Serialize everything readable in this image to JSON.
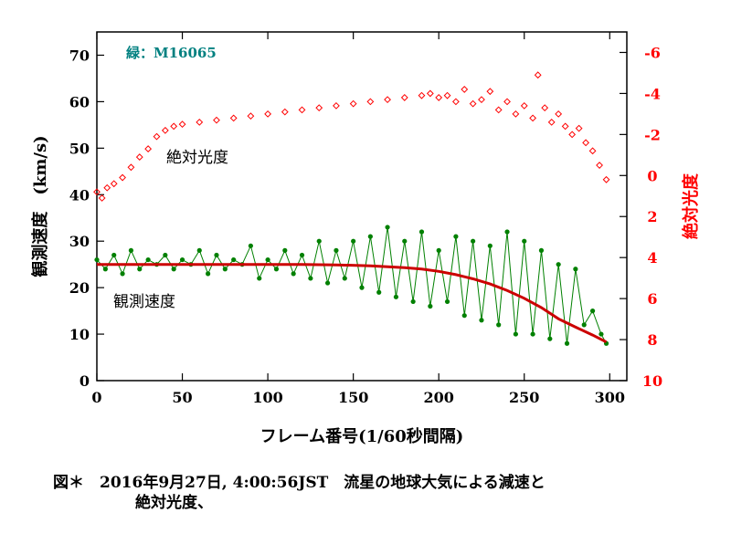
{
  "chart_data": {
    "type": "scatter",
    "annotation_meteor": "緑：M16065",
    "xlabel": "フレーム番号(1/60秒間隔)",
    "ylabel_left": "観測速度　(km/s)",
    "ylabel_right": "絶対光度",
    "xlim": [
      0,
      310
    ],
    "ylim_left": [
      0,
      75
    ],
    "ylim_right": [
      -7,
      10
    ],
    "right_axis_inverted": true,
    "x_ticks": [
      0,
      50,
      100,
      150,
      200,
      250,
      300
    ],
    "y_ticks_left": [
      0,
      10,
      20,
      30,
      40,
      50,
      60,
      70
    ],
    "y_ticks_right": [
      -6,
      -4,
      -2,
      0,
      2,
      4,
      6,
      8,
      10
    ],
    "y_tick_labels_right": [
      "-6",
      "-4",
      "-2",
      "0",
      "2",
      "4",
      "6",
      "8",
      "10"
    ],
    "colors": {
      "velocity": "#008000",
      "fit": "#cc0000",
      "magnitude": "#ff0000",
      "annotation": "#008080",
      "right_axis": "#ff0000"
    },
    "series": [
      {
        "name": "観測速度",
        "axis": "left",
        "style": "line+points",
        "x": [
          0,
          5,
          10,
          15,
          20,
          25,
          30,
          35,
          40,
          45,
          50,
          55,
          60,
          65,
          70,
          75,
          80,
          85,
          90,
          95,
          100,
          105,
          110,
          115,
          120,
          125,
          130,
          135,
          140,
          145,
          150,
          155,
          160,
          165,
          170,
          175,
          180,
          185,
          190,
          195,
          200,
          205,
          210,
          215,
          220,
          225,
          230,
          235,
          240,
          245,
          250,
          255,
          260,
          265,
          270,
          275,
          280,
          285,
          290,
          295,
          298
        ],
        "y": [
          26,
          24,
          27,
          23,
          28,
          24,
          26,
          25,
          27,
          24,
          26,
          25,
          28,
          23,
          27,
          24,
          26,
          25,
          29,
          22,
          26,
          24,
          28,
          23,
          27,
          22,
          30,
          21,
          28,
          22,
          30,
          20,
          31,
          19,
          33,
          18,
          30,
          17,
          32,
          16,
          28,
          17,
          31,
          14,
          30,
          13,
          29,
          12,
          32,
          10,
          30,
          10,
          28,
          9,
          25,
          8,
          24,
          12,
          15,
          10,
          8
        ]
      },
      {
        "name": "fit",
        "axis": "left",
        "style": "line",
        "x": [
          0,
          20,
          40,
          60,
          80,
          100,
          120,
          140,
          160,
          180,
          190,
          200,
          210,
          220,
          230,
          240,
          250,
          260,
          270,
          280,
          290,
          298
        ],
        "y": [
          25,
          25,
          25,
          25,
          25,
          25,
          25,
          24.9,
          24.7,
          24.3,
          24,
          23.5,
          22.8,
          21.9,
          20.8,
          19.4,
          17.7,
          15.7,
          13.3,
          11.5,
          9.8,
          8.3
        ]
      },
      {
        "name": "絶対光度",
        "axis": "right",
        "style": "open-diamonds",
        "x": [
          0,
          3,
          6,
          10,
          15,
          20,
          25,
          30,
          35,
          40,
          45,
          50,
          60,
          70,
          80,
          90,
          100,
          110,
          120,
          130,
          140,
          150,
          160,
          170,
          180,
          190,
          195,
          200,
          205,
          210,
          215,
          220,
          225,
          230,
          235,
          240,
          245,
          250,
          255,
          258,
          262,
          266,
          270,
          274,
          278,
          282,
          286,
          290,
          294,
          298
        ],
        "y": [
          0.8,
          1.1,
          0.6,
          0.4,
          0.1,
          -0.4,
          -0.9,
          -1.3,
          -1.9,
          -2.2,
          -2.4,
          -2.5,
          -2.6,
          -2.7,
          -2.8,
          -2.9,
          -3.0,
          -3.1,
          -3.2,
          -3.3,
          -3.4,
          -3.5,
          -3.6,
          -3.7,
          -3.8,
          -3.9,
          -4.0,
          -3.8,
          -3.9,
          -3.6,
          -4.2,
          -3.5,
          -3.7,
          -4.1,
          -3.2,
          -3.6,
          -3.0,
          -3.4,
          -2.8,
          -4.9,
          -3.3,
          -2.6,
          -3.0,
          -2.4,
          -2.0,
          -2.3,
          -1.6,
          -1.2,
          -0.5,
          0.2
        ]
      }
    ]
  },
  "labels": {
    "velocity_label": "観測速度",
    "magnitude_label": "絶対光度"
  },
  "caption": {
    "line1": "図＊　2016年9月27日, 4:00:56JST　流星の地球大気による減速と",
    "line2": "絶対光度、"
  }
}
